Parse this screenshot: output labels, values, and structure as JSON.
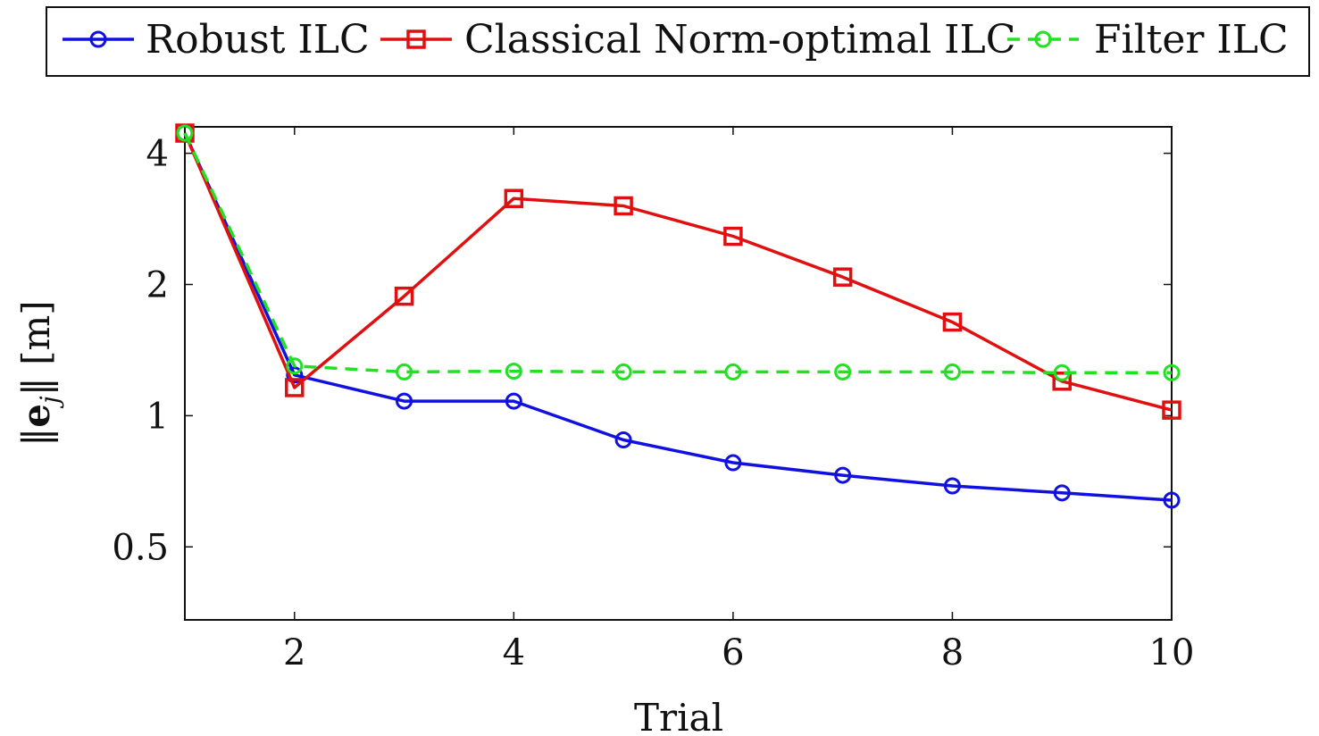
{
  "chart_data": {
    "type": "line",
    "title": "",
    "xlabel": "Trial",
    "ylabel": "||e_j|| [m]",
    "ylabel_parts": {
      "open": "‖",
      "bold": "e",
      "sub": "j",
      "close": "‖ [m]"
    },
    "yscale": "log2",
    "xlim": [
      1,
      10
    ],
    "ylim": [
      0.34,
      4.6
    ],
    "xticks": [
      2,
      4,
      6,
      8,
      10
    ],
    "xtick_labels": [
      "2",
      "4",
      "6",
      "8",
      "10"
    ],
    "yticks": [
      0.5,
      1,
      2,
      4
    ],
    "ytick_labels": [
      "0.5",
      "1",
      "2",
      "4"
    ],
    "grid": false,
    "legend_position": "top (above plot, single row)",
    "x": [
      1,
      2,
      3,
      4,
      5,
      6,
      7,
      8,
      9,
      10
    ],
    "series": [
      {
        "name": "Robust ILC",
        "color": "#1010e0",
        "marker": "circle",
        "dash": "solid",
        "values": [
          4.45,
          1.24,
          1.08,
          1.08,
          0.88,
          0.78,
          0.73,
          0.69,
          0.665,
          0.64
        ]
      },
      {
        "name": "Classical Norm-optimal ILC",
        "color": "#e01010",
        "marker": "square",
        "dash": "solid",
        "values": [
          4.45,
          1.16,
          1.88,
          3.15,
          3.03,
          2.58,
          2.08,
          1.64,
          1.2,
          1.03
        ]
      },
      {
        "name": "Filter ILC",
        "color": "#22e022",
        "marker": "circle",
        "dash": "dashed",
        "values": [
          4.45,
          1.3,
          1.26,
          1.265,
          1.26,
          1.26,
          1.26,
          1.26,
          1.255,
          1.255
        ]
      }
    ]
  }
}
